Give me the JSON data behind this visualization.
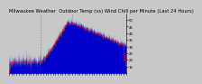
{
  "title": "Milwaukee Weather  Outdoor Temp (vs) Wind Chill per Minute (Last 24 Hours)",
  "bg_color": "#c8c8c8",
  "plot_bg_color": "#c8c8c8",
  "line_color_red": "#ff0000",
  "fill_color_blue": "#0000cc",
  "y_min": 10,
  "y_max": 55,
  "y_ticks": [
    15,
    20,
    25,
    30,
    35,
    40,
    45,
    50
  ],
  "vline_positions": [
    0.27,
    0.54
  ],
  "n_points": 1440,
  "title_fontsize": 3.8,
  "tick_fontsize": 2.8
}
